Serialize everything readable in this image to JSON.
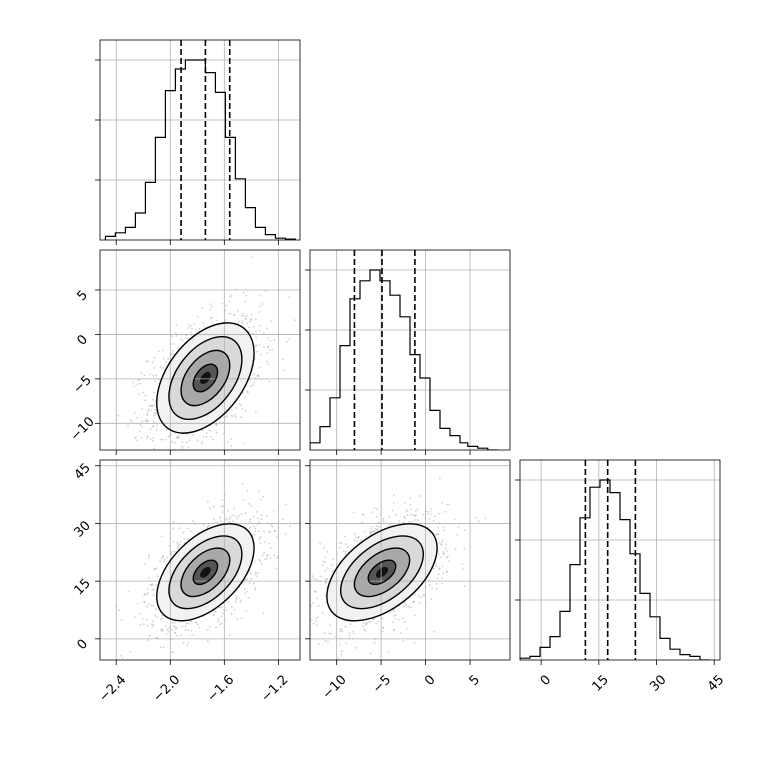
{
  "chart_data": {
    "type": "corner",
    "parameters": [
      {
        "ticks": [
          -2.4,
          -2.0,
          -1.6,
          -1.2
        ],
        "tick_labels": [
          "−2.4",
          "−2.0",
          "−1.6",
          "−1.2"
        ],
        "range": [
          -2.52,
          -1.04
        ],
        "histogram": {
          "edges": [
            -2.48,
            -2.406,
            -2.332,
            -2.258,
            -2.184,
            -2.11,
            -2.036,
            -1.962,
            -1.888,
            -1.814,
            -1.74,
            -1.666,
            -1.592,
            -1.518,
            -1.444,
            -1.37,
            -1.296,
            -1.222,
            -1.148,
            -1.074
          ],
          "counts": [
            0.02,
            0.04,
            0.07,
            0.15,
            0.32,
            0.57,
            0.83,
            0.95,
            1.0,
            1.0,
            0.93,
            0.82,
            0.57,
            0.34,
            0.18,
            0.07,
            0.03,
            0.01,
            0.005
          ]
        },
        "quantiles": [
          -1.92,
          -1.74,
          -1.56
        ]
      },
      {
        "ticks": [
          -10,
          -5,
          0,
          5
        ],
        "tick_labels": [
          "−10",
          "−5",
          "0",
          "5"
        ],
        "range": [
          -13,
          9.5
        ],
        "histogram": {
          "edges": [
            -13,
            -11.875,
            -10.75,
            -9.625,
            -8.5,
            -7.375,
            -6.25,
            -5.125,
            -4.0,
            -2.875,
            -1.75,
            -0.625,
            0.5,
            1.625,
            2.75,
            3.875,
            4.75,
            5.875,
            7.0,
            8.125
          ],
          "counts": [
            0.04,
            0.13,
            0.29,
            0.58,
            0.84,
            0.94,
            1.0,
            0.94,
            0.86,
            0.74,
            0.53,
            0.4,
            0.22,
            0.12,
            0.08,
            0.04,
            0.02,
            0.01,
            0.0
          ]
        },
        "quantiles": [
          -8.0,
          -4.9,
          -1.2
        ]
      },
      {
        "ticks": [
          0,
          15,
          30,
          45
        ],
        "tick_labels": [
          "0",
          "15",
          "30",
          "45"
        ],
        "range": [
          -5.5,
          46.5
        ],
        "histogram": {
          "edges": [
            -5.5,
            -2.9,
            -0.3,
            2.3,
            4.9,
            7.5,
            10.1,
            12.7,
            15.3,
            17.9,
            20.5,
            23.1,
            25.7,
            28.3,
            30.9,
            33.5,
            36.1,
            38.7,
            41.3,
            43.9
          ],
          "counts": [
            0.01,
            0.02,
            0.07,
            0.13,
            0.27,
            0.53,
            0.79,
            0.96,
            1.0,
            0.93,
            0.78,
            0.59,
            0.37,
            0.24,
            0.12,
            0.06,
            0.03,
            0.02,
            0.0
          ]
        },
        "quantiles": [
          11.5,
          17.3,
          24.5
        ]
      }
    ],
    "pairs": [
      {
        "x_param": 0,
        "y_param": 1,
        "center": [
          -1.74,
          -4.9
        ],
        "sd": [
          0.18,
          3.1
        ],
        "rho": 0.45,
        "contour_levels": [
          0.5,
          1.0,
          1.5,
          2.0
        ]
      },
      {
        "x_param": 0,
        "y_param": 2,
        "center": [
          -1.74,
          17.3
        ],
        "sd": [
          0.18,
          6.3
        ],
        "rho": 0.5,
        "contour_levels": [
          0.5,
          1.0,
          1.5,
          2.0
        ]
      },
      {
        "x_param": 1,
        "y_param": 2,
        "center": [
          -4.9,
          17.3
        ],
        "sd": [
          3.1,
          6.3
        ],
        "rho": 0.5,
        "contour_levels": [
          0.5,
          1.0,
          1.5,
          2.0
        ]
      }
    ],
    "grid": true,
    "hist_axes_yticklabels": false
  }
}
